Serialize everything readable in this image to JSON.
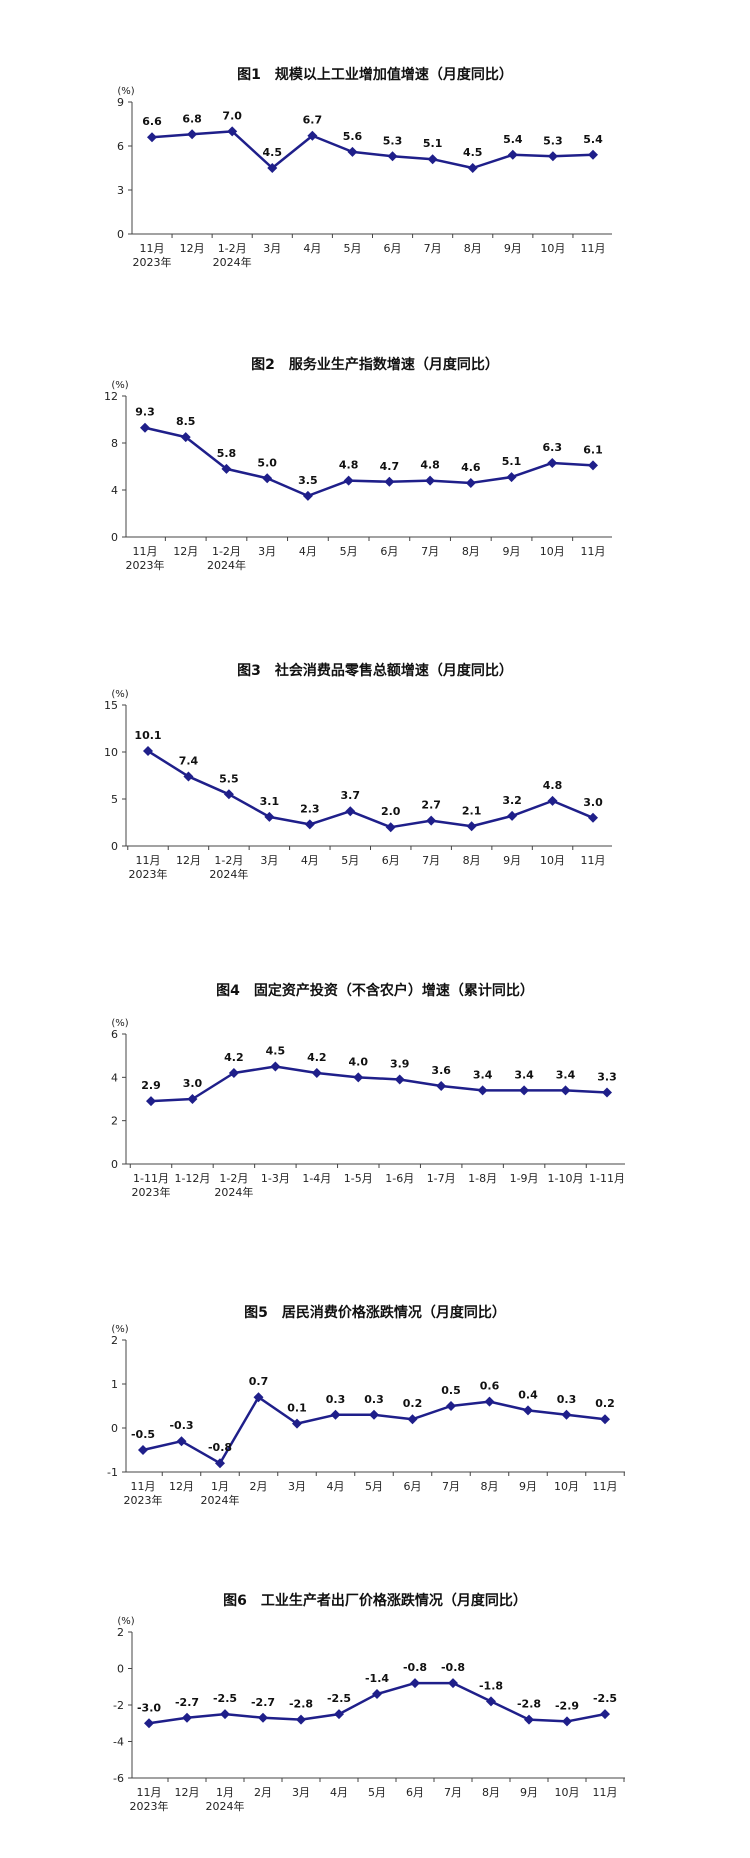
{
  "chart_data": [
    {
      "type": "line",
      "title": "图1　规模以上工业增加值增速（月度同比）",
      "unit": "(%)",
      "ylim": [
        0,
        9
      ],
      "yticks": [
        "0",
        "3",
        "6",
        "9"
      ],
      "categories": [
        "11月",
        "12月",
        "1-2月",
        "3月",
        "4月",
        "5月",
        "6月",
        "7月",
        "8月",
        "9月",
        "10月",
        "11月"
      ],
      "year_labels": {
        "0": "2023年",
        "2": "2024年"
      },
      "values": [
        6.6,
        6.8,
        7.0,
        4.5,
        6.7,
        5.6,
        5.3,
        5.1,
        4.5,
        5.4,
        5.3,
        5.4
      ],
      "labels": [
        "6.6",
        "6.8",
        "7.0",
        "4.5",
        "6.7",
        "5.6",
        "5.3",
        "5.1",
        "4.5",
        "5.4",
        "5.3",
        "5.4"
      ],
      "color": "#1f1f8a"
    },
    {
      "type": "line",
      "title": "图2　服务业生产指数增速（月度同比）",
      "unit": "(%)",
      "ylim": [
        0,
        12
      ],
      "yticks": [
        "0",
        "4",
        "8",
        "12"
      ],
      "categories": [
        "11月",
        "12月",
        "1-2月",
        "3月",
        "4月",
        "5月",
        "6月",
        "7月",
        "8月",
        "9月",
        "10月",
        "11月"
      ],
      "year_labels": {
        "0": "2023年",
        "2": "2024年"
      },
      "values": [
        9.3,
        8.5,
        5.8,
        5.0,
        3.5,
        4.8,
        4.7,
        4.8,
        4.6,
        5.1,
        6.3,
        6.1
      ],
      "labels": [
        "9.3",
        "8.5",
        "5.8",
        "5.0",
        "3.5",
        "4.8",
        "4.7",
        "4.8",
        "4.6",
        "5.1",
        "6.3",
        "6.1"
      ],
      "color": "#1f1f8a"
    },
    {
      "type": "line",
      "title": "图3　社会消费品零售总额增速（月度同比）",
      "unit": "(%)",
      "ylim": [
        0,
        15
      ],
      "yticks": [
        "0",
        "5",
        "10",
        "15"
      ],
      "categories": [
        "11月",
        "12月",
        "1-2月",
        "3月",
        "4月",
        "5月",
        "6月",
        "7月",
        "8月",
        "9月",
        "10月",
        "11月"
      ],
      "year_labels": {
        "0": "2023年",
        "2": "2024年"
      },
      "values": [
        10.1,
        7.4,
        5.5,
        3.1,
        2.3,
        3.7,
        2.0,
        2.7,
        2.1,
        3.2,
        4.8,
        3.0
      ],
      "labels": [
        "10.1",
        "7.4",
        "5.5",
        "3.1",
        "2.3",
        "3.7",
        "2.0",
        "2.7",
        "2.1",
        "3.2",
        "4.8",
        "3.0"
      ],
      "color": "#1f1f8a"
    },
    {
      "type": "line",
      "title": "图4　固定资产投资（不含农户）增速（累计同比）",
      "unit": "(%)",
      "ylim": [
        0,
        6
      ],
      "yticks": [
        "0",
        "2",
        "4",
        "6"
      ],
      "categories": [
        "1-11月",
        "1-12月",
        "1-2月",
        "1-3月",
        "1-4月",
        "1-5月",
        "1-6月",
        "1-7月",
        "1-8月",
        "1-9月",
        "1-10月",
        "1-11月"
      ],
      "year_labels": {
        "0": "2023年",
        "2": "2024年"
      },
      "values": [
        2.9,
        3.0,
        4.2,
        4.5,
        4.2,
        4.0,
        3.9,
        3.6,
        3.4,
        3.4,
        3.4,
        3.3
      ],
      "labels": [
        "2.9",
        "3.0",
        "4.2",
        "4.5",
        "4.2",
        "4.0",
        "3.9",
        "3.6",
        "3.4",
        "3.4",
        "3.4",
        "3.3"
      ],
      "color": "#1f1f8a"
    },
    {
      "type": "line",
      "title": "图5　居民消费价格涨跌情况（月度同比）",
      "unit": "(%)",
      "ylim": [
        -1,
        2
      ],
      "yticks": [
        "-1",
        "0",
        "1",
        "2"
      ],
      "categories": [
        "11月",
        "12月",
        "1月",
        "2月",
        "3月",
        "4月",
        "5月",
        "6月",
        "7月",
        "8月",
        "9月",
        "10月",
        "11月"
      ],
      "year_labels": {
        "0": "2023年",
        "2": "2024年"
      },
      "values": [
        -0.5,
        -0.3,
        -0.8,
        0.7,
        0.1,
        0.3,
        0.3,
        0.2,
        0.5,
        0.6,
        0.4,
        0.3,
        0.2
      ],
      "labels": [
        "-0.5",
        "-0.3",
        "-0.8",
        "0.7",
        "0.1",
        "0.3",
        "0.3",
        "0.2",
        "0.5",
        "0.6",
        "0.4",
        "0.3",
        "0.2"
      ],
      "color": "#1f1f8a"
    },
    {
      "type": "line",
      "title": "图6　工业生产者出厂价格涨跌情况（月度同比）",
      "unit": "(%)",
      "ylim": [
        -6,
        2
      ],
      "yticks": [
        "-6",
        "-4",
        "-2",
        "0",
        "2"
      ],
      "categories": [
        "11月",
        "12月",
        "1月",
        "2月",
        "3月",
        "4月",
        "5月",
        "6月",
        "7月",
        "8月",
        "9月",
        "10月",
        "11月"
      ],
      "year_labels": {
        "0": "2023年",
        "2": "2024年"
      },
      "values": [
        -3.0,
        -2.7,
        -2.5,
        -2.7,
        -2.8,
        -2.5,
        -1.4,
        -0.8,
        -0.8,
        -1.8,
        -2.8,
        -2.9,
        -2.5
      ],
      "labels": [
        "-3.0",
        "-2.7",
        "-2.5",
        "-2.7",
        "-2.8",
        "-2.5",
        "-1.4",
        "-0.8",
        "-0.8",
        "-1.8",
        "-2.8",
        "-2.9",
        "-2.5"
      ],
      "color": "#1f1f8a"
    }
  ]
}
